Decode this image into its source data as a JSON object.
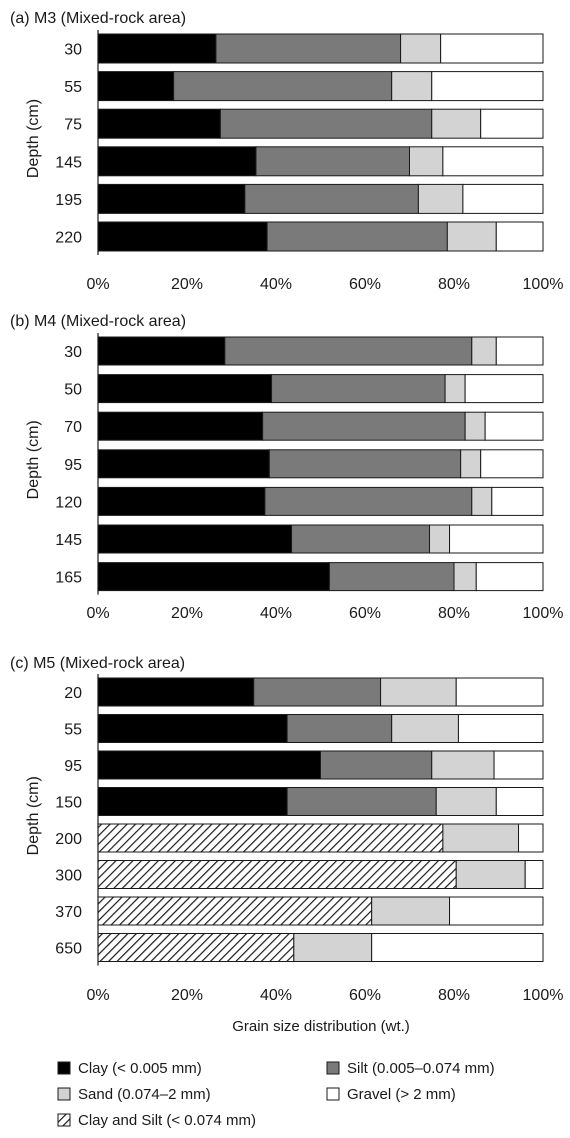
{
  "figure": {
    "xlabel": "Grain size distribution (wt.)"
  },
  "legend": {
    "items": [
      {
        "key": "clay",
        "label": "Clay (< 0.005 mm)"
      },
      {
        "key": "silt",
        "label": "Silt (0.005–0.074 mm)"
      },
      {
        "key": "sand",
        "label": "Sand (0.074–2 mm)"
      },
      {
        "key": "gravel",
        "label": "Gravel (> 2 mm)"
      },
      {
        "key": "claysilt",
        "label": "Clay and Silt (< 0.074 mm)"
      }
    ]
  },
  "colors": {
    "clay": "#000000",
    "silt": "#7a7a7a",
    "sand": "#d3d3d3",
    "gravel": "#ffffff",
    "hatch": "#1a1a1a",
    "outline": "#1a1a1a"
  },
  "chart_data": [
    {
      "type": "bar",
      "orientation": "horizontal",
      "stacked": true,
      "title": "(a) M3 (Mixed-rock area)",
      "ylabel": "Depth (cm)",
      "xlabel": "",
      "xlim": [
        0,
        100
      ],
      "x_ticks": [
        "0%",
        "20%",
        "40%",
        "60%",
        "80%",
        "100%"
      ],
      "categories": [
        "30",
        "55",
        "75",
        "145",
        "195",
        "220"
      ],
      "series": [
        {
          "name": "Clay (< 0.005 mm)",
          "key": "clay",
          "values": [
            26.5,
            17,
            27.5,
            35.5,
            33,
            38
          ]
        },
        {
          "name": "Silt (0.005–0.074 mm)",
          "key": "silt",
          "values": [
            41.5,
            49,
            47.5,
            34.5,
            39,
            40.5
          ]
        },
        {
          "name": "Sand (0.074–2 mm)",
          "key": "sand",
          "values": [
            9,
            9,
            11,
            7.5,
            10,
            11
          ]
        },
        {
          "name": "Gravel (> 2 mm)",
          "key": "gravel",
          "values": [
            23,
            25,
            14,
            22.5,
            18,
            10.5
          ]
        }
      ]
    },
    {
      "type": "bar",
      "orientation": "horizontal",
      "stacked": true,
      "title": "(b) M4 (Mixed-rock area)",
      "ylabel": "Depth (cm)",
      "xlabel": "",
      "xlim": [
        0,
        100
      ],
      "x_ticks": [
        "0%",
        "20%",
        "40%",
        "60%",
        "80%",
        "100%"
      ],
      "categories": [
        "30",
        "50",
        "70",
        "95",
        "120",
        "145",
        "165"
      ],
      "series": [
        {
          "name": "Clay (< 0.005 mm)",
          "key": "clay",
          "values": [
            28.5,
            39,
            37,
            38.5,
            37.5,
            43.5,
            52
          ]
        },
        {
          "name": "Silt (0.005–0.074 mm)",
          "key": "silt",
          "values": [
            55.5,
            39,
            45.5,
            43,
            46.5,
            31,
            28
          ]
        },
        {
          "name": "Sand (0.074–2 mm)",
          "key": "sand",
          "values": [
            5.5,
            4.5,
            4.5,
            4.5,
            4.5,
            4.5,
            5
          ]
        },
        {
          "name": "Gravel (> 2 mm)",
          "key": "gravel",
          "values": [
            10.5,
            17.5,
            13,
            14,
            11.5,
            21,
            15
          ]
        }
      ]
    },
    {
      "type": "bar",
      "orientation": "horizontal",
      "stacked": true,
      "title": "(c) M5 (Mixed-rock area)",
      "ylabel": "Depth (cm)",
      "xlabel": "Grain size distribution (wt.)",
      "xlim": [
        0,
        100
      ],
      "x_ticks": [
        "0%",
        "20%",
        "40%",
        "60%",
        "80%",
        "100%"
      ],
      "categories": [
        "20",
        "55",
        "95",
        "150",
        "200",
        "300",
        "370",
        "650"
      ],
      "series": [
        {
          "name": "Clay (< 0.005 mm)",
          "key": "clay",
          "values": [
            35,
            42.5,
            50,
            42.5,
            0,
            0,
            0,
            0
          ]
        },
        {
          "name": "Silt (0.005–0.074 mm)",
          "key": "silt",
          "values": [
            28.5,
            23.5,
            25,
            33.5,
            0,
            0,
            0,
            0
          ]
        },
        {
          "name": "Clay and Silt (< 0.074 mm)",
          "key": "claysilt",
          "values": [
            0,
            0,
            0,
            0,
            77.5,
            80.5,
            61.5,
            44
          ]
        },
        {
          "name": "Sand (0.074–2 mm)",
          "key": "sand",
          "values": [
            17,
            15,
            14,
            13.5,
            17,
            15.5,
            17.5,
            17.5
          ]
        },
        {
          "name": "Gravel (> 2 mm)",
          "key": "gravel",
          "values": [
            19.5,
            19,
            11,
            10.5,
            5.5,
            4,
            21,
            38.5
          ]
        }
      ]
    }
  ]
}
